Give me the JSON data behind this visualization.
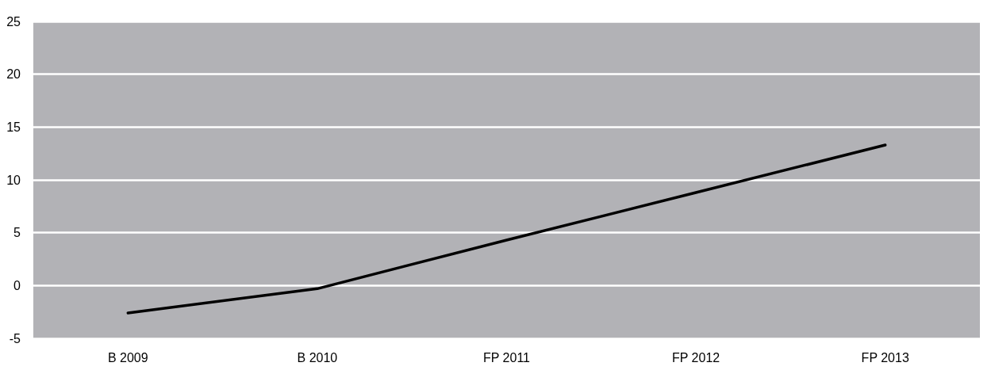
{
  "chart_data": {
    "type": "line",
    "categories": [
      "B 2009",
      "B 2010",
      "FP 2011",
      "FP 2012",
      "FP 2013"
    ],
    "series": [
      {
        "color": "#000000",
        "values": [
          -2.6,
          -0.3,
          4.3,
          8.8,
          13.3
        ]
      }
    ],
    "ylim": [
      -5,
      25
    ],
    "yticks": [
      -5,
      0,
      5,
      10,
      15,
      20,
      25
    ],
    "grid": "y",
    "marker": "none",
    "line_style": "solid"
  }
}
